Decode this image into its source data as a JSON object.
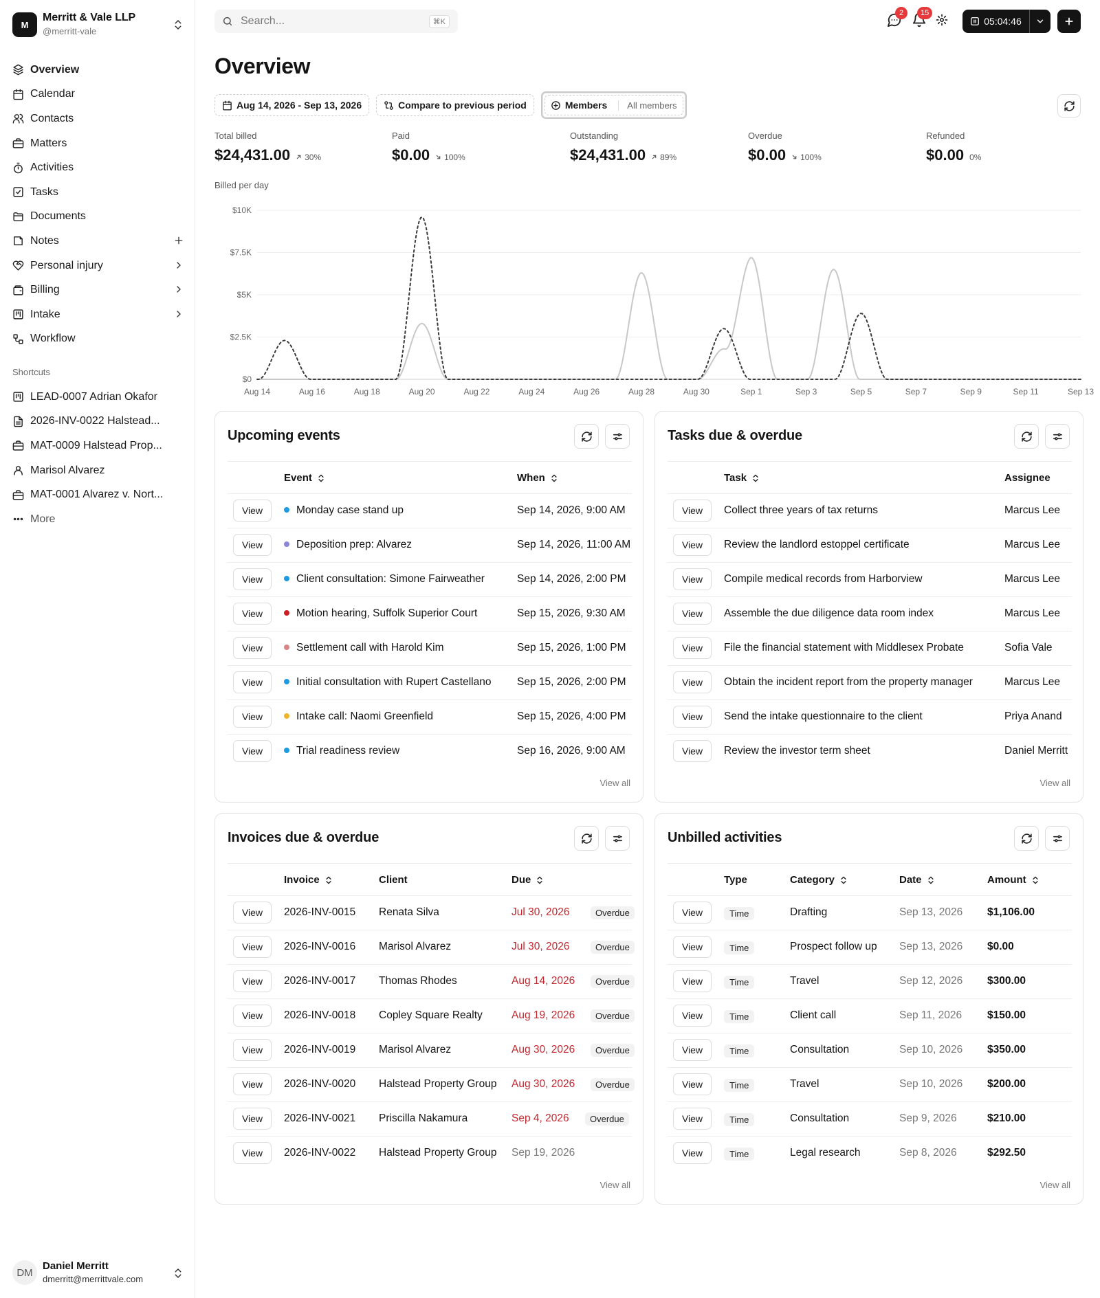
{
  "org": {
    "logo": "M",
    "name": "Merritt & Vale LLP",
    "handle": "@merritt-vale"
  },
  "nav": [
    {
      "label": "Overview",
      "icon": "layers-icon",
      "active": true
    },
    {
      "label": "Calendar",
      "icon": "calendar-icon"
    },
    {
      "label": "Contacts",
      "icon": "users-icon"
    },
    {
      "label": "Matters",
      "icon": "briefcase-icon"
    },
    {
      "label": "Activities",
      "icon": "timer-icon"
    },
    {
      "label": "Tasks",
      "icon": "check-square-icon"
    },
    {
      "label": "Documents",
      "icon": "folder-icon"
    },
    {
      "label": "Notes",
      "icon": "note-icon",
      "trail": "plus"
    },
    {
      "label": "Personal injury",
      "icon": "heart-handshake-icon",
      "trail": "chevron"
    },
    {
      "label": "Billing",
      "icon": "wallet-icon",
      "trail": "chevron"
    },
    {
      "label": "Intake",
      "icon": "kanban-icon",
      "trail": "chevron"
    },
    {
      "label": "Workflow",
      "icon": "workflow-icon"
    }
  ],
  "shortcuts_title": "Shortcuts",
  "shortcuts": [
    {
      "label": "LEAD-0007 Adrian Okafor",
      "icon": "kanban-icon"
    },
    {
      "label": "2026-INV-0022 Halstead...",
      "icon": "file-icon"
    },
    {
      "label": "MAT-0009 Halstead Prop...",
      "icon": "briefcase-icon"
    },
    {
      "label": "Marisol Alvarez",
      "icon": "user-icon"
    },
    {
      "label": "MAT-0001 Alvarez v. Nort...",
      "icon": "briefcase-icon"
    },
    {
      "label": "More",
      "icon": "more-icon"
    }
  ],
  "user": {
    "initials": "DM",
    "name": "Daniel Merritt",
    "email": "dmerritt@merrittvale.com"
  },
  "search": {
    "placeholder": "Search...",
    "shortcut": "⌘K"
  },
  "topbar": {
    "messages_badge": "2",
    "notifications_badge": "15",
    "timer": "05:04:46"
  },
  "page": {
    "title": "Overview"
  },
  "filters": {
    "date_range": "Aug 14, 2026 - Sep 13, 2026",
    "compare": "Compare to previous period",
    "members_label": "Members",
    "members_value": "All members"
  },
  "kpis": [
    {
      "label": "Total billed",
      "value": "$24,431.00",
      "delta": "30%",
      "trend": "up"
    },
    {
      "label": "Paid",
      "value": "$0.00",
      "delta": "100%",
      "trend": "down"
    },
    {
      "label": "Outstanding",
      "value": "$24,431.00",
      "delta": "89%",
      "trend": "up"
    },
    {
      "label": "Overdue",
      "value": "$0.00",
      "delta": "100%",
      "trend": "down"
    },
    {
      "label": "Refunded",
      "value": "$0.00",
      "delta": "0%",
      "trend": "flat"
    }
  ],
  "chart_data": {
    "type": "line",
    "title": "Billed per day",
    "x": [
      "Aug 14",
      "Aug 15",
      "Aug 16",
      "Aug 17",
      "Aug 18",
      "Aug 19",
      "Aug 20",
      "Aug 21",
      "Aug 22",
      "Aug 23",
      "Aug 24",
      "Aug 25",
      "Aug 26",
      "Aug 27",
      "Aug 28",
      "Aug 29",
      "Aug 30",
      "Aug 31",
      "Sep 1",
      "Sep 2",
      "Sep 3",
      "Sep 4",
      "Sep 5",
      "Sep 6",
      "Sep 7",
      "Sep 8",
      "Sep 9",
      "Sep 10",
      "Sep 11",
      "Sep 12",
      "Sep 13"
    ],
    "xticks": [
      "Aug 14",
      "Aug 16",
      "Aug 18",
      "Aug 20",
      "Aug 22",
      "Aug 24",
      "Aug 26",
      "Aug 28",
      "Aug 30",
      "Sep 1",
      "Sep 3",
      "Sep 5",
      "Sep 7",
      "Sep 9",
      "Sep 11",
      "Sep 13"
    ],
    "yticks": [
      "$0",
      "$2.5K",
      "$5K",
      "$7.5K",
      "$10K"
    ],
    "ylim": [
      0,
      10000
    ],
    "grid": true,
    "series": [
      {
        "style": "solid",
        "color": "#c8c8c8",
        "values": [
          0,
          0,
          0,
          0,
          0,
          0,
          3300,
          0,
          0,
          0,
          0,
          0,
          0,
          0,
          6300,
          0,
          0,
          1800,
          7200,
          0,
          0,
          6500,
          0,
          0,
          0,
          0,
          0,
          0,
          0,
          0,
          0
        ]
      },
      {
        "style": "dashed",
        "color": "#3a3a3a",
        "values": [
          0,
          2300,
          0,
          0,
          0,
          0,
          9600,
          0,
          0,
          0,
          0,
          0,
          0,
          0,
          0,
          0,
          0,
          3000,
          0,
          0,
          0,
          0,
          3900,
          0,
          0,
          0,
          0,
          0,
          0,
          0,
          0
        ]
      }
    ]
  },
  "labels": {
    "view": "View",
    "view_all": "View all",
    "overdue": "Overdue",
    "time": "Time"
  },
  "events": {
    "title": "Upcoming events",
    "columns": [
      "Event",
      "When"
    ],
    "rows": [
      {
        "event": "Monday case stand up",
        "when": "Sep 14, 2026, 9:00 AM",
        "color": "#1e9be0"
      },
      {
        "event": "Deposition prep: Alvarez",
        "when": "Sep 14, 2026, 11:00 AM",
        "color": "#8a85d6"
      },
      {
        "event": "Client consultation: Simone Fairweather",
        "when": "Sep 14, 2026, 2:00 PM",
        "color": "#1e9be0"
      },
      {
        "event": "Motion hearing, Suffolk Superior Court",
        "when": "Sep 15, 2026, 9:30 AM",
        "color": "#cc1e24"
      },
      {
        "event": "Settlement call with Harold Kim",
        "when": "Sep 15, 2026, 1:00 PM",
        "color": "#d98585"
      },
      {
        "event": "Initial consultation with Rupert Castellano",
        "when": "Sep 15, 2026, 2:00 PM",
        "color": "#1e9be0"
      },
      {
        "event": "Intake call: Naomi Greenfield",
        "when": "Sep 15, 2026, 4:00 PM",
        "color": "#f0b429"
      },
      {
        "event": "Trial readiness review",
        "when": "Sep 16, 2026, 9:00 AM",
        "color": "#1e9be0"
      }
    ]
  },
  "tasks": {
    "title": "Tasks due & overdue",
    "columns": [
      "Task",
      "Assignee"
    ],
    "rows": [
      {
        "task": "Collect three years of tax returns",
        "assignee": "Marcus Lee"
      },
      {
        "task": "Review the landlord estoppel certificate",
        "assignee": "Marcus Lee"
      },
      {
        "task": "Compile medical records from Harborview",
        "assignee": "Marcus Lee"
      },
      {
        "task": "Assemble the due diligence data room index",
        "assignee": "Marcus Lee"
      },
      {
        "task": "File the financial statement with Middlesex Probate",
        "assignee": "Sofia Vale"
      },
      {
        "task": "Obtain the incident report from the property manager",
        "assignee": "Marcus Lee"
      },
      {
        "task": "Send the intake questionnaire to the client",
        "assignee": "Priya Anand"
      },
      {
        "task": "Review the investor term sheet",
        "assignee": "Daniel Merritt"
      }
    ]
  },
  "invoices": {
    "title": "Invoices due & overdue",
    "columns": [
      "Invoice",
      "Client",
      "Due"
    ],
    "rows": [
      {
        "invoice": "2026-INV-0015",
        "client": "Renata Silva",
        "due": "Jul 30, 2026",
        "overdue": true
      },
      {
        "invoice": "2026-INV-0016",
        "client": "Marisol Alvarez",
        "due": "Jul 30, 2026",
        "overdue": true
      },
      {
        "invoice": "2026-INV-0017",
        "client": "Thomas Rhodes",
        "due": "Aug 14, 2026",
        "overdue": true
      },
      {
        "invoice": "2026-INV-0018",
        "client": "Copley Square Realty",
        "due": "Aug 19, 2026",
        "overdue": true
      },
      {
        "invoice": "2026-INV-0019",
        "client": "Marisol Alvarez",
        "due": "Aug 30, 2026",
        "overdue": true
      },
      {
        "invoice": "2026-INV-0020",
        "client": "Halstead Property Group",
        "due": "Aug 30, 2026",
        "overdue": true
      },
      {
        "invoice": "2026-INV-0021",
        "client": "Priscilla Nakamura",
        "due": "Sep 4, 2026",
        "overdue": true
      },
      {
        "invoice": "2026-INV-0022",
        "client": "Halstead Property Group",
        "due": "Sep 19, 2026",
        "overdue": false
      }
    ]
  },
  "unbilled": {
    "title": "Unbilled activities",
    "columns": [
      "Type",
      "Category",
      "Date",
      "Amount"
    ],
    "rows": [
      {
        "type": "Time",
        "category": "Drafting",
        "date": "Sep 13, 2026",
        "amount": "$1,106.00"
      },
      {
        "type": "Time",
        "category": "Prospect follow up",
        "date": "Sep 13, 2026",
        "amount": "$0.00"
      },
      {
        "type": "Time",
        "category": "Travel",
        "date": "Sep 12, 2026",
        "amount": "$300.00"
      },
      {
        "type": "Time",
        "category": "Client call",
        "date": "Sep 11, 2026",
        "amount": "$150.00"
      },
      {
        "type": "Time",
        "category": "Consultation",
        "date": "Sep 10, 2026",
        "amount": "$350.00"
      },
      {
        "type": "Time",
        "category": "Travel",
        "date": "Sep 10, 2026",
        "amount": "$200.00"
      },
      {
        "type": "Time",
        "category": "Consultation",
        "date": "Sep 9, 2026",
        "amount": "$210.00"
      },
      {
        "type": "Time",
        "category": "Legal research",
        "date": "Sep 8, 2026",
        "amount": "$292.50"
      }
    ]
  }
}
